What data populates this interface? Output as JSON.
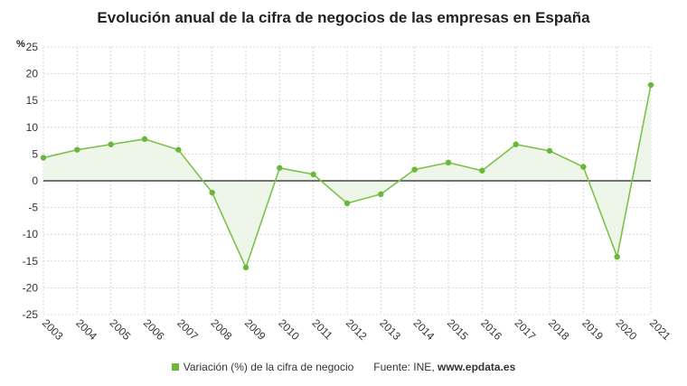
{
  "chart_data": {
    "type": "area",
    "title": "Evolución anual de la cifra de negocios de las empresas en España",
    "ylabel": "%",
    "xlabel": "",
    "ylim": [
      -25,
      25
    ],
    "yticks": [
      25,
      20,
      15,
      10,
      5,
      0,
      -5,
      -10,
      -15,
      -20,
      -25
    ],
    "categories": [
      "2003",
      "2004",
      "2005",
      "2006",
      "2007",
      "2008",
      "2009",
      "2010",
      "2011",
      "2012",
      "2013",
      "2014",
      "2015",
      "2016",
      "2017",
      "2018",
      "2019",
      "2020",
      "2021"
    ],
    "series": [
      {
        "name": "Variación (%) de la cifra de negocio",
        "values": [
          4.3,
          5.8,
          6.8,
          7.8,
          5.8,
          -2.2,
          -16.2,
          2.4,
          1.2,
          -4.2,
          -2.5,
          2.1,
          3.4,
          1.9,
          6.8,
          5.6,
          2.6,
          -14.2,
          17.9
        ]
      }
    ],
    "grid": true,
    "legend_position": "bottom"
  },
  "footer": {
    "source_label": "Fuente: INE,",
    "source_site": "www.epdata.es"
  },
  "colors": {
    "line": "#7cc24a",
    "marker": "#6ab73d",
    "fill": "#eef6ea",
    "zero_line": "#222222",
    "grid": "#d8d8d8"
  }
}
